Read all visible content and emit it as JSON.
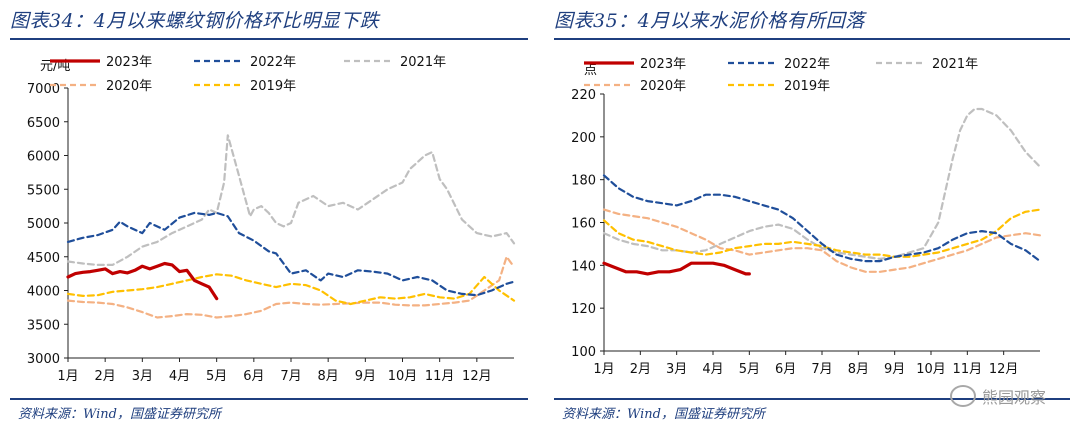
{
  "figures": [
    {
      "title": "图表34：4月以来螺纹钢价格环比明显下跌",
      "source": "资料来源：Wind，国盛证券研究所"
    },
    {
      "title": "图表35：4月以来水泥价格有所回落",
      "source": "资料来源：Wind，国盛证券研究所"
    }
  ],
  "watermark": {
    "text": "熊园观察",
    "icon": "wechat-icon"
  },
  "colors": {
    "y2023": "#c00000",
    "y2022": "#1f4e9a",
    "y2021": "#bfbfbf",
    "y2020": "#f4b183",
    "y2019": "#ffc000"
  },
  "chart_data": [
    {
      "type": "line",
      "title": "图表34：4月以来螺纹钢价格环比明显下跌",
      "ylabel": "元/吨",
      "xlabel": "",
      "ylim": [
        3000,
        7000
      ],
      "yticks": [
        3000,
        3500,
        4000,
        4500,
        5000,
        5500,
        6000,
        6500,
        7000
      ],
      "xlim": [
        0,
        12
      ],
      "categories": [
        "1月",
        "2月",
        "3月",
        "4月",
        "5月",
        "6月",
        "7月",
        "8月",
        "9月",
        "10月",
        "11月",
        "12月"
      ],
      "grid": false,
      "legend": "top",
      "series": [
        {
          "name": "2023年",
          "style": "solid",
          "x": [
            0,
            0.2,
            0.4,
            0.6,
            0.8,
            1.0,
            1.2,
            1.4,
            1.6,
            1.8,
            2.0,
            2.2,
            2.4,
            2.6,
            2.8,
            3.0,
            3.2,
            3.4,
            3.6,
            3.8,
            4.0
          ],
          "y": [
            4200,
            4250,
            4270,
            4280,
            4300,
            4320,
            4250,
            4280,
            4260,
            4300,
            4360,
            4320,
            4360,
            4400,
            4380,
            4280,
            4300,
            4150,
            4100,
            4050,
            3880
          ]
        },
        {
          "name": "2022年",
          "style": "dashed",
          "x": [
            0,
            0.4,
            0.8,
            1.2,
            1.4,
            1.6,
            2.0,
            2.2,
            2.6,
            3.0,
            3.4,
            3.8,
            4.0,
            4.3,
            4.6,
            5.0,
            5.4,
            5.6,
            6.0,
            6.4,
            6.8,
            7.0,
            7.4,
            7.8,
            8.2,
            8.6,
            9.0,
            9.4,
            9.8,
            10.2,
            10.6,
            11.0,
            11.4,
            11.8,
            12.0
          ],
          "y": [
            4720,
            4780,
            4820,
            4900,
            5020,
            4950,
            4850,
            5000,
            4900,
            5080,
            5150,
            5120,
            5150,
            5100,
            4850,
            4740,
            4580,
            4550,
            4250,
            4300,
            4150,
            4250,
            4200,
            4300,
            4280,
            4250,
            4150,
            4200,
            4150,
            4000,
            3950,
            3930,
            4000,
            4100,
            4130
          ]
        },
        {
          "name": "2021年",
          "style": "dashed",
          "x": [
            0,
            0.4,
            0.8,
            1.2,
            1.6,
            2.0,
            2.4,
            2.8,
            3.2,
            3.6,
            3.8,
            4.0,
            4.2,
            4.3,
            4.5,
            4.7,
            4.9,
            5.0,
            5.2,
            5.4,
            5.6,
            5.8,
            6.0,
            6.2,
            6.6,
            7.0,
            7.4,
            7.8,
            8.2,
            8.6,
            9.0,
            9.2,
            9.4,
            9.6,
            9.8,
            10.0,
            10.2,
            10.6,
            11.0,
            11.4,
            11.8,
            12.0
          ],
          "y": [
            4430,
            4400,
            4380,
            4380,
            4500,
            4650,
            4720,
            4850,
            4950,
            5050,
            5200,
            5150,
            5600,
            6300,
            5900,
            5500,
            5100,
            5200,
            5250,
            5150,
            5000,
            4950,
            5000,
            5300,
            5400,
            5250,
            5300,
            5200,
            5350,
            5500,
            5600,
            5800,
            5900,
            6000,
            6050,
            5650,
            5500,
            5050,
            4850,
            4800,
            4850,
            4700
          ]
        },
        {
          "name": "2020年",
          "style": "dashed",
          "x": [
            0,
            0.4,
            0.8,
            1.2,
            1.6,
            2.0,
            2.4,
            2.8,
            3.2,
            3.6,
            4.0,
            4.4,
            4.8,
            5.2,
            5.6,
            6.0,
            6.4,
            6.8,
            7.2,
            7.6,
            8.0,
            8.4,
            8.8,
            9.2,
            9.6,
            10.0,
            10.4,
            10.8,
            11.2,
            11.6,
            11.8,
            12.0
          ],
          "y": [
            3850,
            3830,
            3820,
            3800,
            3750,
            3680,
            3600,
            3620,
            3650,
            3640,
            3600,
            3620,
            3650,
            3700,
            3800,
            3820,
            3800,
            3790,
            3800,
            3810,
            3820,
            3820,
            3790,
            3780,
            3780,
            3800,
            3820,
            3850,
            4000,
            4150,
            4500,
            4350
          ]
        },
        {
          "name": "2019年",
          "style": "dashed",
          "x": [
            0,
            0.4,
            0.8,
            1.2,
            1.6,
            2.0,
            2.4,
            2.8,
            3.2,
            3.6,
            4.0,
            4.4,
            4.8,
            5.2,
            5.6,
            6.0,
            6.4,
            6.8,
            7.2,
            7.6,
            8.0,
            8.4,
            8.8,
            9.2,
            9.6,
            10.0,
            10.4,
            10.8,
            11.2,
            11.6,
            12.0
          ],
          "y": [
            3950,
            3920,
            3930,
            3980,
            4000,
            4020,
            4050,
            4100,
            4150,
            4200,
            4240,
            4220,
            4150,
            4100,
            4050,
            4100,
            4080,
            4000,
            3850,
            3800,
            3850,
            3900,
            3880,
            3900,
            3950,
            3900,
            3880,
            3950,
            4200,
            4000,
            3850
          ]
        }
      ]
    },
    {
      "type": "line",
      "title": "图表35：4月以来水泥价格有所回落",
      "ylabel": "点",
      "xlabel": "",
      "ylim": [
        100,
        220
      ],
      "yticks": [
        100,
        120,
        140,
        160,
        180,
        200,
        220
      ],
      "xlim": [
        0,
        12
      ],
      "categories": [
        "1月",
        "2月",
        "3月",
        "4月",
        "5月",
        "6月",
        "7月",
        "8月",
        "9月",
        "10月",
        "11月",
        "12月"
      ],
      "grid": false,
      "legend": "top",
      "series": [
        {
          "name": "2023年",
          "style": "solid",
          "x": [
            0,
            0.3,
            0.6,
            0.9,
            1.2,
            1.5,
            1.8,
            2.1,
            2.4,
            2.7,
            3.0,
            3.3,
            3.6,
            3.9,
            4.0
          ],
          "y": [
            141,
            139,
            137,
            137,
            136,
            137,
            137,
            138,
            141,
            141,
            141,
            140,
            138,
            136,
            136
          ]
        },
        {
          "name": "2022年",
          "style": "dashed",
          "x": [
            0,
            0.4,
            0.8,
            1.2,
            1.6,
            2.0,
            2.4,
            2.8,
            3.2,
            3.6,
            4.0,
            4.4,
            4.8,
            5.2,
            5.6,
            6.0,
            6.4,
            6.8,
            7.2,
            7.6,
            8.0,
            8.4,
            8.8,
            9.2,
            9.6,
            10.0,
            10.4,
            10.8,
            11.2,
            11.6,
            12.0
          ],
          "y": [
            182,
            176,
            172,
            170,
            169,
            168,
            170,
            173,
            173,
            172,
            170,
            168,
            166,
            162,
            156,
            150,
            145,
            143,
            142,
            142,
            144,
            145,
            146,
            148,
            152,
            155,
            156,
            155,
            150,
            147,
            142
          ]
        },
        {
          "name": "2021年",
          "style": "dashed",
          "x": [
            0,
            0.4,
            0.8,
            1.2,
            1.6,
            2.0,
            2.4,
            2.8,
            3.2,
            3.6,
            4.0,
            4.4,
            4.8,
            5.2,
            5.6,
            6.0,
            6.4,
            6.8,
            7.2,
            7.6,
            8.0,
            8.4,
            8.8,
            9.2,
            9.4,
            9.6,
            9.8,
            10.0,
            10.2,
            10.4,
            10.8,
            11.2,
            11.6,
            12.0
          ],
          "y": [
            155,
            152,
            150,
            149,
            147,
            147,
            146,
            147,
            150,
            153,
            156,
            158,
            159,
            157,
            152,
            148,
            146,
            145,
            144,
            143,
            144,
            146,
            148,
            160,
            175,
            190,
            203,
            210,
            213,
            213,
            210,
            203,
            193,
            186
          ]
        },
        {
          "name": "2020年",
          "style": "dashed",
          "x": [
            0,
            0.4,
            0.8,
            1.2,
            1.6,
            2.0,
            2.4,
            2.8,
            3.2,
            3.6,
            4.0,
            4.4,
            4.8,
            5.2,
            5.6,
            6.0,
            6.4,
            6.8,
            7.2,
            7.6,
            8.0,
            8.4,
            8.8,
            9.2,
            9.6,
            10.0,
            10.4,
            10.8,
            11.2,
            11.6,
            12.0
          ],
          "y": [
            166,
            164,
            163,
            162,
            160,
            158,
            155,
            152,
            148,
            147,
            145,
            146,
            147,
            148,
            148,
            147,
            142,
            139,
            137,
            137,
            138,
            139,
            141,
            143,
            145,
            147,
            150,
            153,
            154,
            155,
            154
          ]
        },
        {
          "name": "2019年",
          "style": "dashed",
          "x": [
            0,
            0.4,
            0.8,
            1.2,
            1.6,
            2.0,
            2.4,
            2.8,
            3.2,
            3.6,
            4.0,
            4.4,
            4.8,
            5.2,
            5.6,
            6.0,
            6.4,
            6.8,
            7.2,
            7.6,
            8.0,
            8.4,
            8.8,
            9.2,
            9.6,
            10.0,
            10.4,
            10.8,
            11.2,
            11.6,
            12.0
          ],
          "y": [
            161,
            155,
            152,
            151,
            149,
            147,
            146,
            145,
            146,
            148,
            149,
            150,
            150,
            151,
            150,
            149,
            147,
            146,
            145,
            145,
            144,
            144,
            145,
            146,
            148,
            150,
            152,
            156,
            162,
            165,
            166
          ]
        }
      ]
    }
  ]
}
